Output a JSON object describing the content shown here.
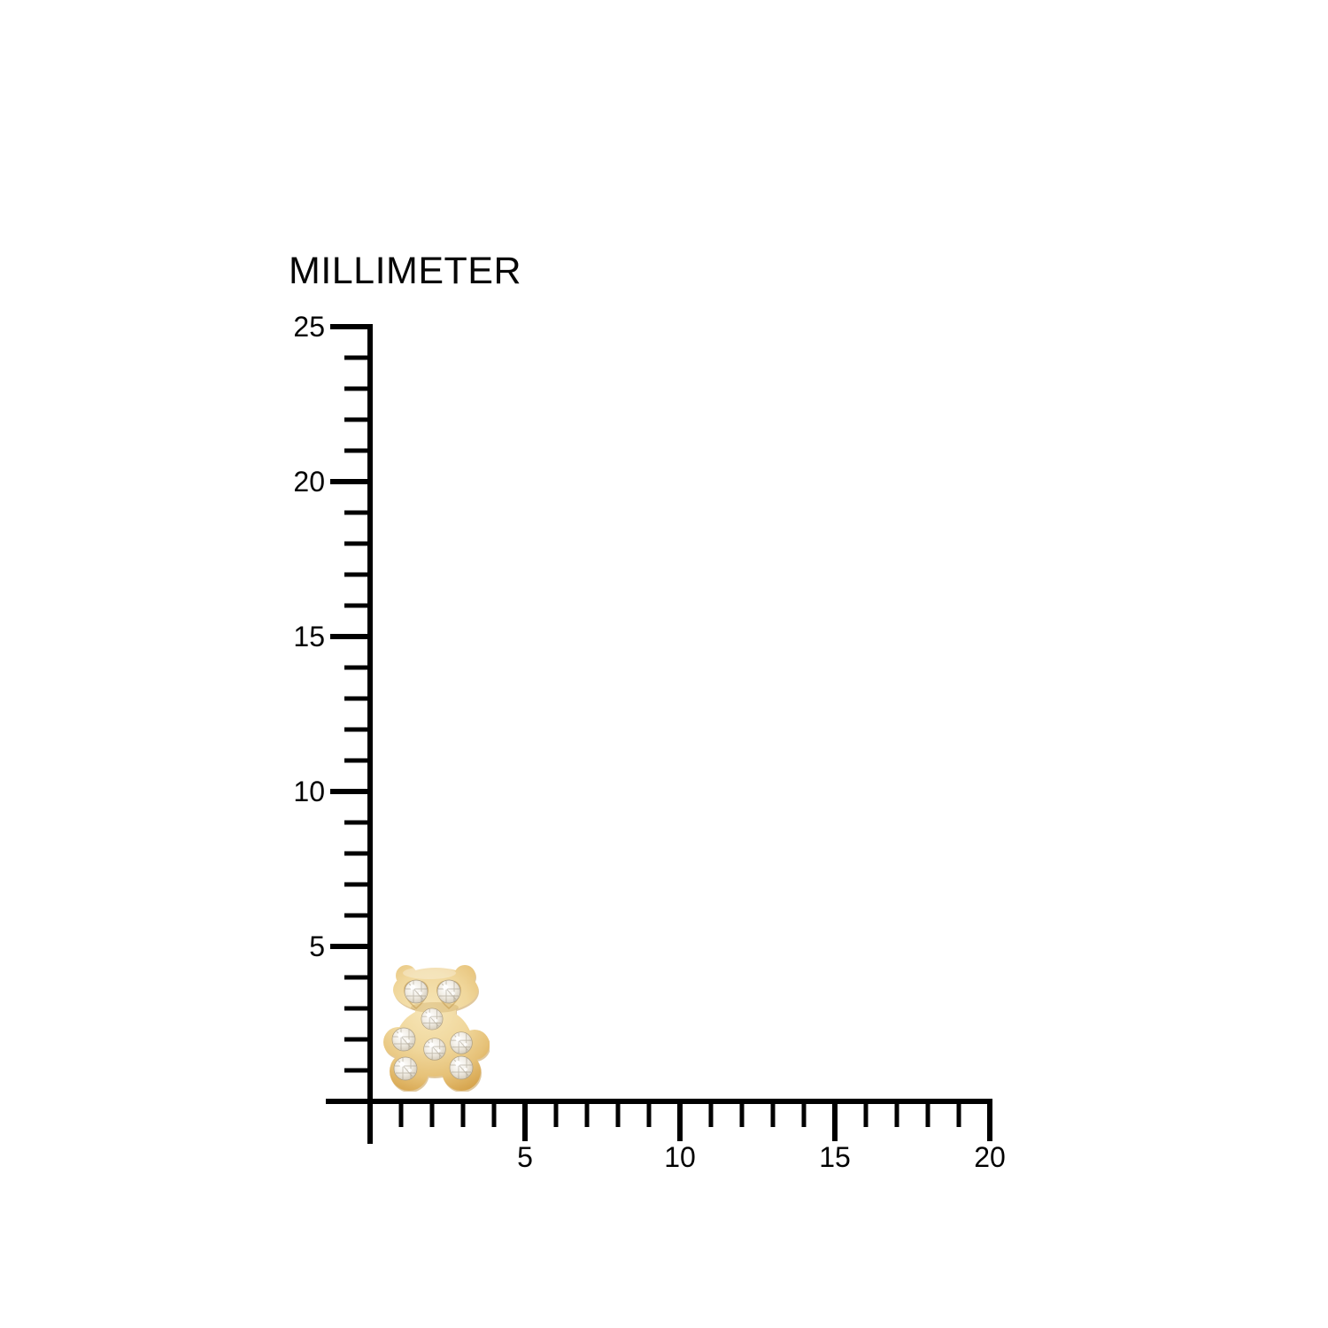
{
  "chart_data": {
    "type": "ruler-measurement",
    "title": "MILLIMETER",
    "background": "#FFFFFF",
    "axis_color": "#000000",
    "grid": false,
    "x_axis": {
      "unit": "mm",
      "min": 0,
      "max": 20,
      "major_tick_interval": 5,
      "minor_tick_interval": 1,
      "tick_labels": [
        "5",
        "10",
        "15",
        "20"
      ]
    },
    "y_axis": {
      "unit": "mm",
      "min": 0,
      "max": 25,
      "major_tick_interval": 5,
      "minor_tick_interval": 1,
      "tick_labels": [
        "5",
        "10",
        "15",
        "20",
        "25"
      ]
    },
    "measured_object": {
      "name": "gold bear-shaped stud earring with pave crystals",
      "width_mm": 3.4,
      "height_mm": 4.1,
      "offset_from_x_axis_mm": 0.4,
      "offset_from_y_axis_mm": 0.5,
      "crystal_count": 8,
      "colors": {
        "gold_light": "#F7E6B8",
        "gold_mid": "#EFD394",
        "gold_deep": "#D5A24A",
        "crystal": "#F1ECE3",
        "crystal_shadow": "#ACA08A"
      }
    }
  }
}
